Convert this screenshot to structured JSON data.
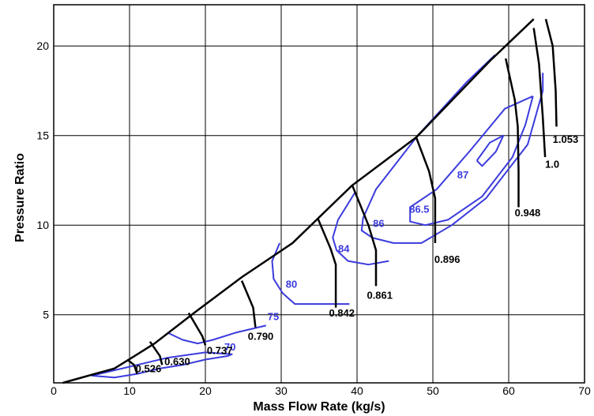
{
  "chart_data": {
    "type": "line",
    "title": "",
    "xlabel": "Mass Flow Rate (kg/s)",
    "ylabel": "Pressure Ratio",
    "xlim": [
      0,
      70
    ],
    "ylim": [
      1.2,
      22.3
    ],
    "xticks": [
      "0",
      "10",
      "20",
      "30",
      "40",
      "50",
      "60",
      "70"
    ],
    "yticks": [
      "5",
      "10",
      "15",
      "20"
    ],
    "grid": true,
    "colors": {
      "speed_lines": "#000000",
      "efficiency_contours": "#3b3bdd",
      "grid": "#000000"
    },
    "surge_line": {
      "x": [
        1.2,
        8,
        10.3,
        13.3,
        18.5,
        24.8,
        31.5,
        39.3,
        47.8,
        57.6,
        63.3
      ],
      "y": [
        1.2,
        2.0,
        2.6,
        3.4,
        5.1,
        7.1,
        9.0,
        12.2,
        14.9,
        19.2,
        21.5
      ]
    },
    "speed_lines": [
      {
        "label": "0.526",
        "x": [
          9.7,
          10.6,
          11.0
        ],
        "y": [
          2.5,
          2.2,
          1.7
        ],
        "label_at": [
          10.8,
          1.8
        ]
      },
      {
        "label": "0.630",
        "x": [
          12.7,
          14.0,
          14.3
        ],
        "y": [
          3.5,
          2.7,
          2.2
        ],
        "label_at": [
          14.6,
          2.2
        ]
      },
      {
        "label": "0.737",
        "x": [
          17.8,
          19.6,
          20.0
        ],
        "y": [
          5.1,
          3.8,
          3.3
        ],
        "label_at": [
          20.2,
          2.8
        ]
      },
      {
        "label": "0.790",
        "x": [
          24.8,
          26.3,
          26.6
        ],
        "y": [
          6.9,
          5.4,
          4.3
        ],
        "label_at": [
          25.6,
          3.6
        ]
      },
      {
        "label": "0.842",
        "x": [
          34.8,
          36.5,
          37.2,
          37.2
        ],
        "y": [
          10.4,
          8.7,
          7.8,
          5.4
        ],
        "label_at": [
          36.3,
          4.9
        ]
      },
      {
        "label": "0.861",
        "x": [
          39.4,
          41.5,
          42.5,
          42.5
        ],
        "y": [
          12.2,
          10.0,
          8.6,
          6.6
        ],
        "label_at": [
          41.3,
          5.9
        ]
      },
      {
        "label": "0.896",
        "x": [
          47.8,
          49.5,
          50.3,
          50.3
        ],
        "y": [
          14.9,
          13.0,
          11.5,
          9.0
        ],
        "label_at": [
          50.2,
          7.9
        ]
      },
      {
        "label": "0.948",
        "x": [
          59.6,
          60.8,
          61.2,
          61.3,
          61.3
        ],
        "y": [
          19.3,
          17.0,
          15.5,
          13.0,
          11.0
        ],
        "label_at": [
          60.8,
          10.5
        ]
      },
      {
        "label": "1.0",
        "x": [
          63.3,
          64.0,
          64.5,
          64.8
        ],
        "y": [
          21.0,
          19.0,
          16.0,
          13.8
        ],
        "label_at": [
          64.8,
          13.2
        ]
      },
      {
        "label": "1.053",
        "x": [
          64.9,
          65.8,
          66.2,
          66.3
        ],
        "y": [
          21.5,
          20.0,
          17.5,
          15.5
        ],
        "label_at": [
          65.8,
          14.6
        ]
      }
    ],
    "efficiency_contours": [
      {
        "label": "70",
        "x": [
          5,
          8,
          11,
          14,
          17,
          20,
          23,
          23.5,
          20,
          15,
          11,
          8,
          5
        ],
        "y": [
          1.6,
          1.5,
          1.7,
          2.0,
          2.2,
          2.5,
          2.7,
          2.8,
          2.9,
          2.6,
          2.2,
          1.9,
          1.6
        ],
        "label_at": [
          22.5,
          3.0
        ]
      },
      {
        "label": "75",
        "x": [
          15,
          17,
          19,
          21,
          24,
          26,
          28
        ],
        "y": [
          4.0,
          3.6,
          3.4,
          3.6,
          4.0,
          4.2,
          4.4
        ],
        "label_at": [
          28.2,
          4.7
        ]
      },
      {
        "label": "80",
        "x": [
          29.8,
          28.8,
          29.0,
          30.2,
          31.8,
          36,
          39
        ],
        "y": [
          9.0,
          8.0,
          7.0,
          6.2,
          5.6,
          5.6,
          5.6
        ],
        "label_at": [
          30.6,
          6.5
        ]
      },
      {
        "label": "84",
        "x": [
          39.7,
          37.5,
          36.8,
          37.3,
          38.8,
          41.5,
          44.2
        ],
        "y": [
          11.8,
          10.3,
          9.3,
          8.6,
          8.0,
          7.8,
          8.0
        ],
        "label_at": [
          37.5,
          8.5
        ]
      },
      {
        "label": "86",
        "x": [
          58.2,
          54.5,
          48,
          42.5,
          40.8,
          40.6,
          42.0,
          44.8,
          48.5,
          52.5,
          57.0,
          62.5,
          64.5,
          64.5
        ],
        "y": [
          19.5,
          18.0,
          15.0,
          12.0,
          10.4,
          9.7,
          9.3,
          9.0,
          9.0,
          10.0,
          11.5,
          14.5,
          17.5,
          18.5
        ],
        "label_at": [
          42.1,
          9.9
        ]
      },
      {
        "label": "86.5",
        "x": [
          63.2,
          59.5,
          55.0,
          50.5,
          47.0,
          47.0,
          49.0,
          52.0,
          56.5,
          60.5,
          62.2,
          63.2
        ],
        "y": [
          17.2,
          16.5,
          14.2,
          12.0,
          11.0,
          10.2,
          10.0,
          10.3,
          11.6,
          13.8,
          15.6,
          17.2
        ],
        "label_at": [
          46.9,
          10.7
        ]
      },
      {
        "label": "87",
        "x": [
          55.8,
          57.5,
          59.3,
          58.3,
          56.5,
          55.8
        ],
        "y": [
          13.6,
          14.6,
          15.0,
          14.1,
          13.3,
          13.6
        ],
        "label_at": [
          53.2,
          12.6
        ]
      }
    ]
  }
}
